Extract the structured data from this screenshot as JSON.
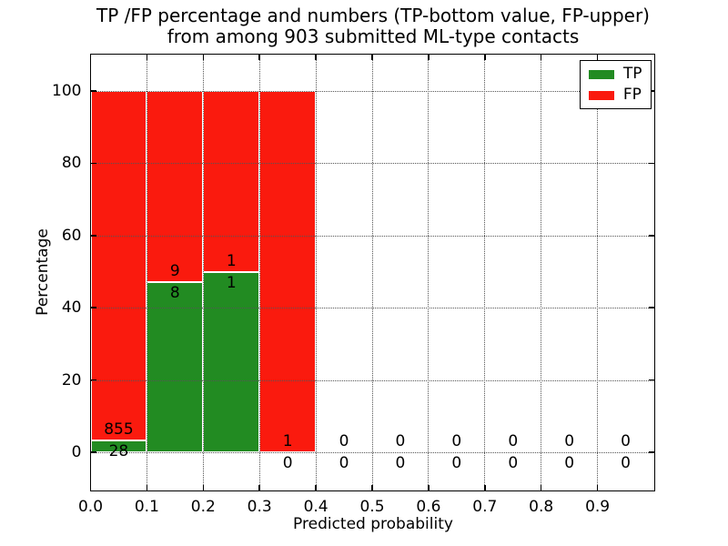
{
  "chart_data": {
    "type": "bar",
    "subtype": "stacked-percentage-histogram",
    "title_line1": "TP /FP percentage and numbers (TP-bottom value, FP-upper)",
    "title_line2": "from among 903 submitted ML-type contacts",
    "xlabel": "Predicted probability",
    "ylabel": "Percentage",
    "total_contacts": 903,
    "annotation_rule": "FP count above segment boundary, TP count below",
    "xlim": [
      0.0,
      1.0
    ],
    "ylim": [
      -10.8,
      110.8
    ],
    "bar_bin_width": 0.1,
    "x_tick_labels": [
      "0.0",
      "0.1",
      "0.2",
      "0.3",
      "0.4",
      "0.5",
      "0.6",
      "0.7",
      "0.8",
      "0.9"
    ],
    "y_ticks": [
      0,
      20,
      40,
      60,
      80,
      100
    ],
    "grid": {
      "style": "dotted",
      "color": "#555555",
      "on": true
    },
    "series": [
      {
        "name": "TP",
        "color": "#228b22",
        "values": [
          28,
          8,
          1,
          0,
          0,
          0,
          0,
          0,
          0,
          0
        ]
      },
      {
        "name": "FP",
        "color": "#fa1a0e",
        "values": [
          855,
          9,
          1,
          1,
          0,
          0,
          0,
          0,
          0,
          0
        ]
      }
    ],
    "legend": {
      "position": "upper right",
      "entries": [
        "TP",
        "FP"
      ]
    }
  }
}
